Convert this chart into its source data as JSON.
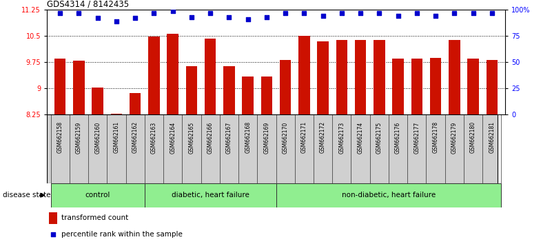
{
  "title": "GDS4314 / 8142435",
  "samples": [
    "GSM662158",
    "GSM662159",
    "GSM662160",
    "GSM662161",
    "GSM662162",
    "GSM662163",
    "GSM662164",
    "GSM662165",
    "GSM662166",
    "GSM662167",
    "GSM662168",
    "GSM662169",
    "GSM662170",
    "GSM662171",
    "GSM662172",
    "GSM662173",
    "GSM662174",
    "GSM662175",
    "GSM662176",
    "GSM662177",
    "GSM662178",
    "GSM662179",
    "GSM662180",
    "GSM662181"
  ],
  "bar_values": [
    9.85,
    9.8,
    9.02,
    8.27,
    8.87,
    10.48,
    10.57,
    9.63,
    10.42,
    9.63,
    9.35,
    9.35,
    9.82,
    10.51,
    10.35,
    10.38,
    10.38,
    10.38,
    9.85,
    9.85,
    9.87,
    10.38,
    9.85,
    9.82
  ],
  "percentile_pct": [
    97,
    97,
    92,
    89,
    92,
    97,
    99,
    93,
    97,
    93,
    91,
    93,
    97,
    97,
    94,
    97,
    97,
    97,
    94,
    97,
    94,
    97,
    97,
    97
  ],
  "bar_color": "#cc1100",
  "dot_color": "#0000cc",
  "ylim_left": [
    8.25,
    11.25
  ],
  "ylim_right": [
    0,
    100
  ],
  "yticks_left": [
    8.25,
    9.0,
    9.75,
    10.5,
    11.25
  ],
  "ytick_left_labels": [
    "8.25",
    "9",
    "9.75",
    "10.5",
    "11.25"
  ],
  "yticks_right": [
    0,
    25,
    50,
    75,
    100
  ],
  "ytick_right_labels": [
    "0",
    "25",
    "50",
    "75",
    "100%"
  ],
  "grid_lines": [
    9.0,
    9.75,
    10.5
  ],
  "groups": [
    {
      "label": "control",
      "start": 0,
      "end": 4
    },
    {
      "label": "diabetic, heart failure",
      "start": 5,
      "end": 11
    },
    {
      "label": "non-diabetic, heart failure",
      "start": 12,
      "end": 23
    }
  ],
  "group_color": "#90ee90",
  "group_edge_color": "#333333",
  "xlabel_bg": "#d0d0d0",
  "legend_bar_label": "transformed count",
  "legend_dot_label": "percentile rank within the sample"
}
